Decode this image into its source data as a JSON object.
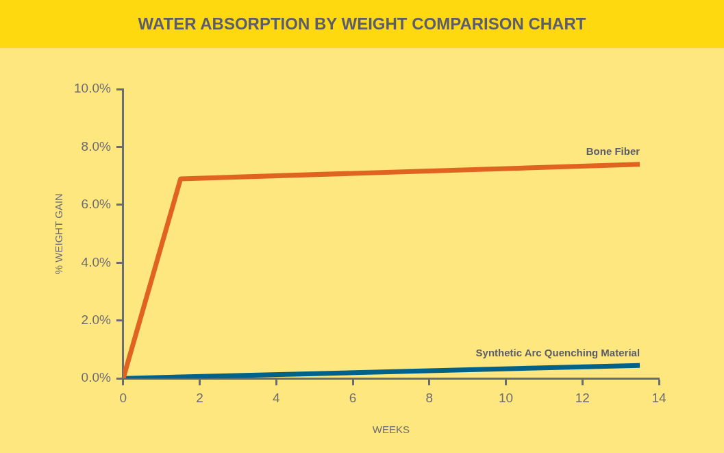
{
  "chart_data": {
    "type": "line",
    "title": "WATER ABSORPTION BY WEIGHT COMPARISON CHART",
    "xlabel": "WEEKS",
    "ylabel": "% WEIGHT GAIN",
    "series": [
      {
        "name": "Bone Fiber",
        "color": "#e06420",
        "x": [
          0,
          1.5,
          13.5
        ],
        "values": [
          0,
          6.9,
          7.4
        ]
      },
      {
        "name": "Synthetic Arc Quenching Material",
        "color": "#00628a",
        "x": [
          0,
          13.5
        ],
        "values": [
          0,
          0.45
        ]
      }
    ],
    "xlim": [
      0,
      14
    ],
    "xticks": [
      0,
      2,
      4,
      6,
      8,
      10,
      12,
      14
    ],
    "ylim": [
      0,
      10
    ],
    "yticks": [
      {
        "value": 0,
        "label": "0.0%"
      },
      {
        "value": 2,
        "label": "2.0%"
      },
      {
        "value": 4,
        "label": "4.0%"
      },
      {
        "value": 6,
        "label": "6.0%"
      },
      {
        "value": 8,
        "label": "8.0%"
      },
      {
        "value": 10,
        "label": "10.0%"
      }
    ],
    "grid": false,
    "legend": false,
    "marker": "none",
    "line_style": "solid"
  }
}
